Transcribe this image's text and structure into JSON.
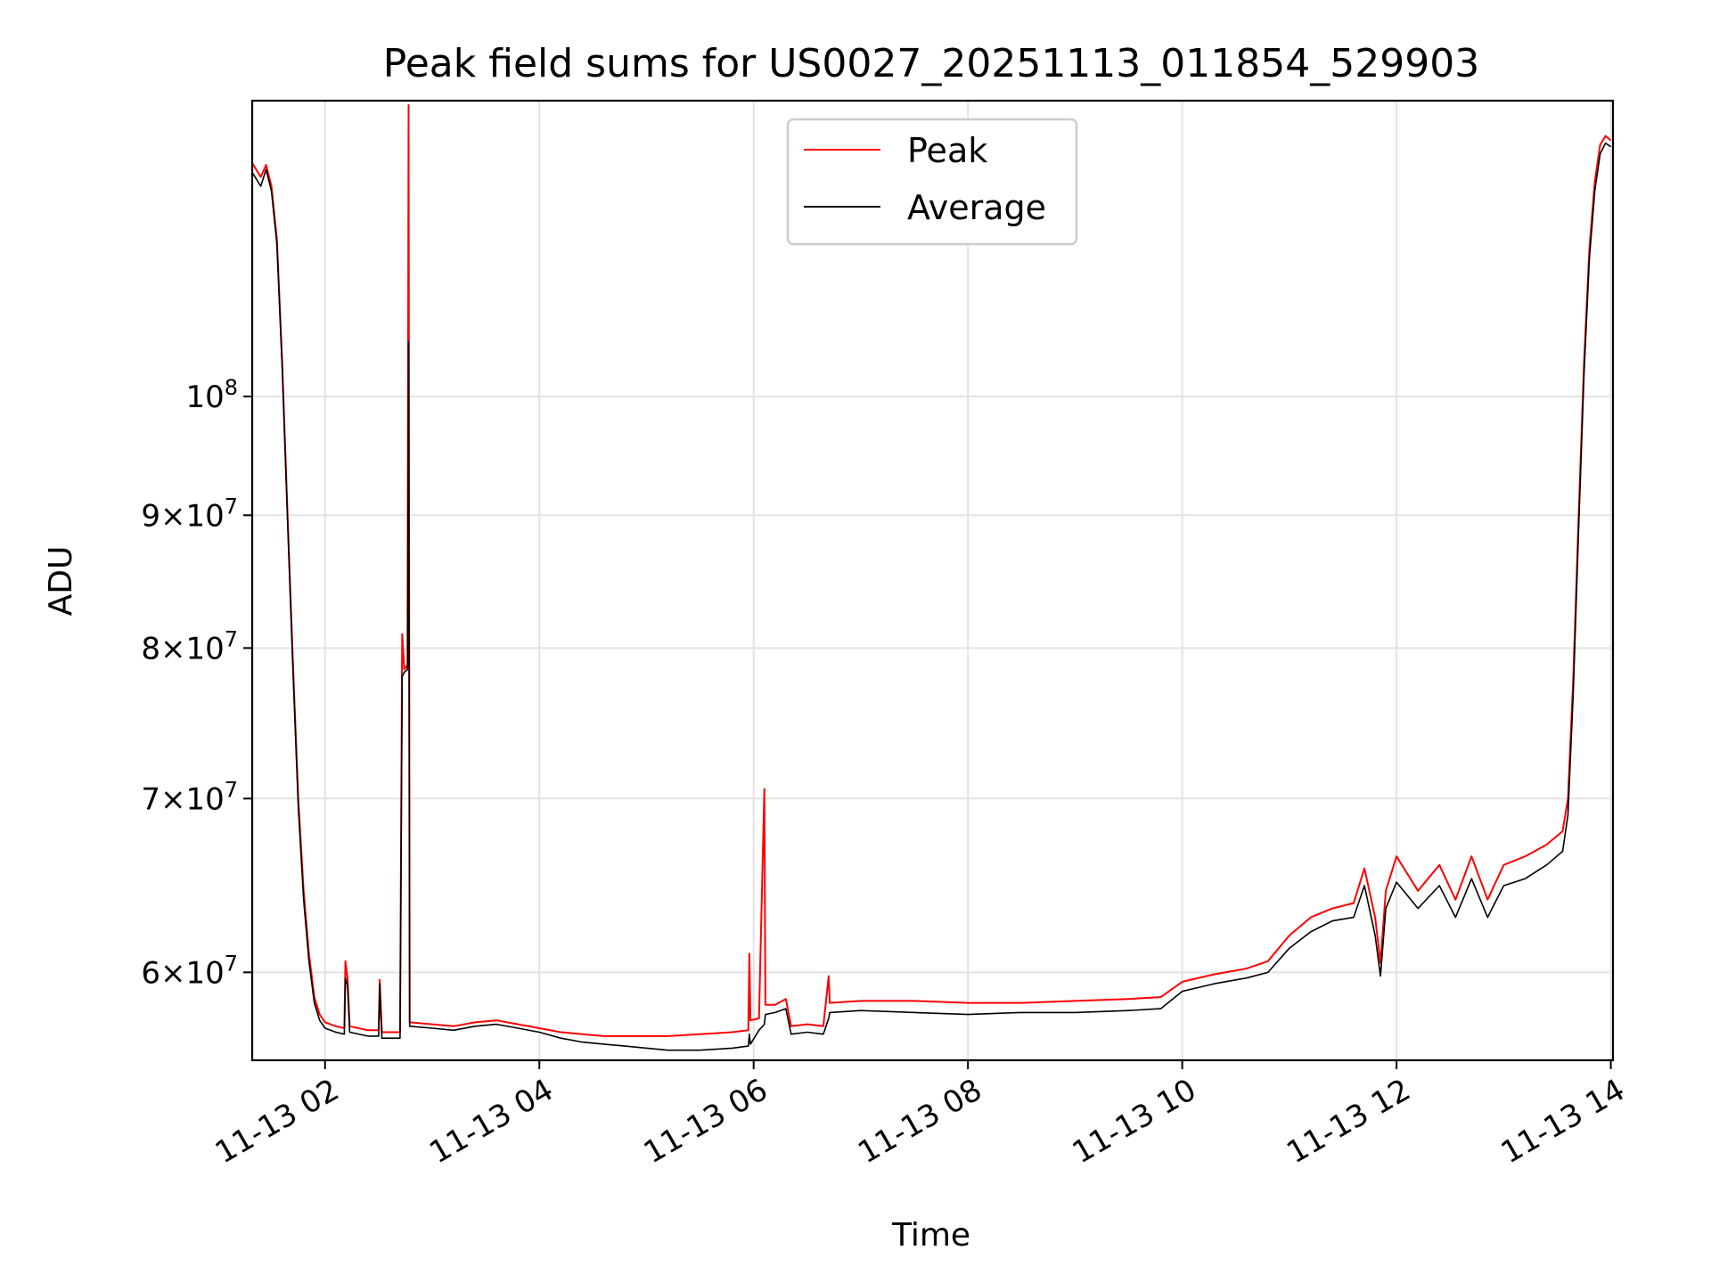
{
  "chart_data": {
    "type": "line",
    "title": "Peak field sums for US0027_20251113_011854_529903",
    "xlabel": "Time",
    "ylabel": "ADU",
    "yscale": "log",
    "xlim_hours": [
      1.32,
      14.02
    ],
    "ylim": [
      55500000,
      130000000
    ],
    "x_ticks": [
      {
        "value": 2,
        "label": "11-13 02"
      },
      {
        "value": 4,
        "label": "11-13 04"
      },
      {
        "value": 6,
        "label": "11-13 06"
      },
      {
        "value": 8,
        "label": "11-13 08"
      },
      {
        "value": 10,
        "label": "11-13 10"
      },
      {
        "value": 12,
        "label": "11-13 12"
      },
      {
        "value": 14,
        "label": "11-13 14"
      }
    ],
    "y_ticks": [
      {
        "value": 60000000,
        "mantissa": "6",
        "exp": "7",
        "times": "×10"
      },
      {
        "value": 70000000,
        "mantissa": "7",
        "exp": "7",
        "times": "×10"
      },
      {
        "value": 80000000,
        "mantissa": "8",
        "exp": "7",
        "times": "×10"
      },
      {
        "value": 90000000,
        "mantissa": "9",
        "exp": "7",
        "times": "×10"
      },
      {
        "value": 100000000,
        "mantissa": "",
        "exp": "8",
        "times": "10"
      }
    ],
    "grid": true,
    "legend_position": "top-center",
    "series": [
      {
        "name": "Peak",
        "color": "#ff0000",
        "points": [
          [
            1.32,
            123000000
          ],
          [
            1.4,
            121500000
          ],
          [
            1.45,
            122800000
          ],
          [
            1.5,
            120500000
          ],
          [
            1.55,
            115000000
          ],
          [
            1.6,
            103000000
          ],
          [
            1.65,
            90000000
          ],
          [
            1.7,
            79000000
          ],
          [
            1.75,
            70000000
          ],
          [
            1.8,
            64500000
          ],
          [
            1.85,
            61000000
          ],
          [
            1.9,
            58700000
          ],
          [
            1.95,
            57800000
          ],
          [
            2.0,
            57400000
          ],
          [
            2.1,
            57200000
          ],
          [
            2.18,
            57100000
          ],
          [
            2.19,
            60600000
          ],
          [
            2.21,
            59700000
          ],
          [
            2.23,
            57200000
          ],
          [
            2.4,
            57000000
          ],
          [
            2.5,
            57000000
          ],
          [
            2.51,
            59600000
          ],
          [
            2.53,
            56900000
          ],
          [
            2.7,
            56900000
          ],
          [
            2.72,
            81000000
          ],
          [
            2.74,
            78500000
          ],
          [
            2.77,
            78800000
          ],
          [
            2.78,
            129500000
          ],
          [
            2.79,
            57400000
          ],
          [
            3.0,
            57300000
          ],
          [
            3.2,
            57200000
          ],
          [
            3.4,
            57400000
          ],
          [
            3.6,
            57500000
          ],
          [
            3.8,
            57300000
          ],
          [
            4.0,
            57100000
          ],
          [
            4.2,
            56900000
          ],
          [
            4.4,
            56800000
          ],
          [
            4.6,
            56700000
          ],
          [
            4.8,
            56700000
          ],
          [
            5.0,
            56700000
          ],
          [
            5.2,
            56700000
          ],
          [
            5.5,
            56800000
          ],
          [
            5.8,
            56900000
          ],
          [
            5.95,
            57000000
          ],
          [
            5.96,
            61000000
          ],
          [
            5.97,
            57500000
          ],
          [
            6.05,
            57600000
          ],
          [
            6.1,
            70600000
          ],
          [
            6.11,
            58300000
          ],
          [
            6.2,
            58300000
          ],
          [
            6.3,
            58600000
          ],
          [
            6.35,
            57200000
          ],
          [
            6.5,
            57300000
          ],
          [
            6.65,
            57200000
          ],
          [
            6.7,
            59800000
          ],
          [
            6.71,
            58400000
          ],
          [
            7.0,
            58500000
          ],
          [
            7.5,
            58500000
          ],
          [
            8.0,
            58400000
          ],
          [
            8.5,
            58400000
          ],
          [
            9.0,
            58500000
          ],
          [
            9.5,
            58600000
          ],
          [
            9.8,
            58700000
          ],
          [
            10.0,
            59500000
          ],
          [
            10.3,
            59900000
          ],
          [
            10.6,
            60200000
          ],
          [
            10.8,
            60600000
          ],
          [
            11.0,
            62000000
          ],
          [
            11.2,
            63000000
          ],
          [
            11.4,
            63500000
          ],
          [
            11.6,
            63800000
          ],
          [
            11.7,
            65800000
          ],
          [
            11.8,
            63000000
          ],
          [
            11.85,
            60500000
          ],
          [
            11.9,
            64500000
          ],
          [
            12.0,
            66500000
          ],
          [
            12.2,
            64500000
          ],
          [
            12.4,
            66000000
          ],
          [
            12.55,
            64000000
          ],
          [
            12.7,
            66500000
          ],
          [
            12.85,
            64000000
          ],
          [
            13.0,
            66000000
          ],
          [
            13.2,
            66500000
          ],
          [
            13.4,
            67200000
          ],
          [
            13.55,
            68000000
          ],
          [
            13.6,
            70000000
          ],
          [
            13.65,
            78000000
          ],
          [
            13.7,
            90000000
          ],
          [
            13.75,
            103000000
          ],
          [
            13.8,
            114000000
          ],
          [
            13.85,
            121000000
          ],
          [
            13.9,
            125000000
          ],
          [
            13.95,
            126000000
          ],
          [
            14.0,
            125500000
          ]
        ]
      },
      {
        "name": "Average",
        "color": "#000000",
        "points": [
          [
            1.32,
            122000000
          ],
          [
            1.4,
            120500000
          ],
          [
            1.45,
            122300000
          ],
          [
            1.5,
            120000000
          ],
          [
            1.55,
            114500000
          ],
          [
            1.6,
            102500000
          ],
          [
            1.65,
            89500000
          ],
          [
            1.7,
            78500000
          ],
          [
            1.75,
            69500000
          ],
          [
            1.8,
            64000000
          ],
          [
            1.85,
            60600000
          ],
          [
            1.9,
            58400000
          ],
          [
            1.95,
            57500000
          ],
          [
            2.0,
            57100000
          ],
          [
            2.1,
            56900000
          ],
          [
            2.18,
            56800000
          ],
          [
            2.19,
            59700000
          ],
          [
            2.21,
            59300000
          ],
          [
            2.23,
            56900000
          ],
          [
            2.4,
            56700000
          ],
          [
            2.5,
            56700000
          ],
          [
            2.51,
            59400000
          ],
          [
            2.53,
            56600000
          ],
          [
            2.7,
            56600000
          ],
          [
            2.72,
            78000000
          ],
          [
            2.74,
            78300000
          ],
          [
            2.77,
            78500000
          ],
          [
            2.78,
            105000000
          ],
          [
            2.79,
            57200000
          ],
          [
            3.0,
            57100000
          ],
          [
            3.2,
            57000000
          ],
          [
            3.4,
            57200000
          ],
          [
            3.6,
            57300000
          ],
          [
            3.8,
            57100000
          ],
          [
            4.0,
            56900000
          ],
          [
            4.2,
            56600000
          ],
          [
            4.4,
            56400000
          ],
          [
            4.6,
            56300000
          ],
          [
            4.8,
            56200000
          ],
          [
            5.0,
            56100000
          ],
          [
            5.2,
            56000000
          ],
          [
            5.5,
            56000000
          ],
          [
            5.8,
            56100000
          ],
          [
            5.95,
            56200000
          ],
          [
            5.96,
            56800000
          ],
          [
            5.97,
            56300000
          ],
          [
            6.05,
            57000000
          ],
          [
            6.1,
            57300000
          ],
          [
            6.11,
            57800000
          ],
          [
            6.2,
            57900000
          ],
          [
            6.3,
            58100000
          ],
          [
            6.35,
            56800000
          ],
          [
            6.5,
            56900000
          ],
          [
            6.65,
            56800000
          ],
          [
            6.7,
            57600000
          ],
          [
            6.71,
            57900000
          ],
          [
            7.0,
            58000000
          ],
          [
            7.5,
            57900000
          ],
          [
            8.0,
            57800000
          ],
          [
            8.5,
            57900000
          ],
          [
            9.0,
            57900000
          ],
          [
            9.5,
            58000000
          ],
          [
            9.8,
            58100000
          ],
          [
            10.0,
            59000000
          ],
          [
            10.3,
            59400000
          ],
          [
            10.6,
            59700000
          ],
          [
            10.8,
            60000000
          ],
          [
            11.0,
            61300000
          ],
          [
            11.2,
            62200000
          ],
          [
            11.4,
            62800000
          ],
          [
            11.6,
            63000000
          ],
          [
            11.7,
            64800000
          ],
          [
            11.8,
            62000000
          ],
          [
            11.85,
            59800000
          ],
          [
            11.9,
            63500000
          ],
          [
            12.0,
            65000000
          ],
          [
            12.2,
            63500000
          ],
          [
            12.4,
            64800000
          ],
          [
            12.55,
            63000000
          ],
          [
            12.7,
            65200000
          ],
          [
            12.85,
            63000000
          ],
          [
            13.0,
            64800000
          ],
          [
            13.2,
            65200000
          ],
          [
            13.4,
            66000000
          ],
          [
            13.55,
            66800000
          ],
          [
            13.6,
            69000000
          ],
          [
            13.65,
            77000000
          ],
          [
            13.7,
            89000000
          ],
          [
            13.75,
            102000000
          ],
          [
            13.8,
            113000000
          ],
          [
            13.85,
            120000000
          ],
          [
            13.9,
            124000000
          ],
          [
            13.95,
            125200000
          ],
          [
            14.0,
            124800000
          ]
        ]
      }
    ]
  }
}
